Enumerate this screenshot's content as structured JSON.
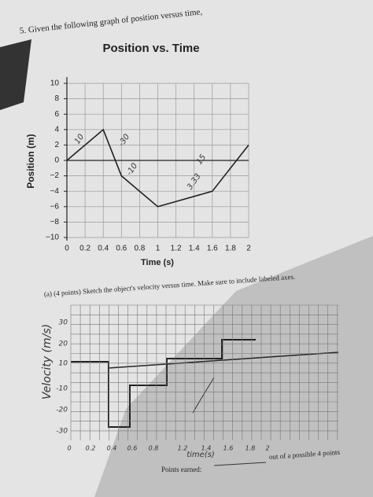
{
  "question": "5. Given the following graph of position versus time,",
  "chart_data": {
    "type": "line",
    "title": "Position vs. Time",
    "xlabel": "Time (s)",
    "ylabel": "Position (m)",
    "x": [
      0,
      0.4,
      0.6,
      1.0,
      1.6,
      2.0
    ],
    "series": [
      {
        "values": [
          0,
          4,
          -2,
          -6,
          -4,
          2
        ],
        "color": "#222222"
      }
    ],
    "xlim": [
      0,
      2
    ],
    "ylim": [
      -10,
      10
    ],
    "xticks": [
      0,
      0.2,
      0.4,
      0.6,
      0.8,
      1,
      1.2,
      1.4,
      1.6,
      1.8,
      2
    ],
    "yticks": [
      {
        "value": -10,
        "label": "−10"
      },
      {
        "value": -8,
        "label": "−8"
      },
      {
        "value": -6,
        "label": "−6"
      },
      {
        "value": -4,
        "label": "−4"
      },
      {
        "value": -2,
        "label": "−2"
      },
      0,
      2,
      4,
      6,
      8,
      10
    ],
    "grid": true,
    "annotations": [
      "10",
      "-30",
      "-10",
      "3.33",
      "15"
    ]
  },
  "part_a": {
    "prompt": "(a) (4 points) Sketch the object's velocity versus time. Make sure to include labeled axes.",
    "sketch": {
      "ylabel": "Velocity (m/s)",
      "xlabel": "time(s)",
      "yticks": [
        "30",
        "20",
        "10",
        "-10",
        "-20",
        "-30"
      ],
      "xticks": [
        "0",
        "0.2",
        "0.4",
        "0.6",
        "0.8",
        "1.2",
        "1.4",
        "1.6",
        "1.8",
        "2"
      ]
    },
    "points_earned": "Points earned:",
    "points_total": "out of a possible 4 points"
  }
}
